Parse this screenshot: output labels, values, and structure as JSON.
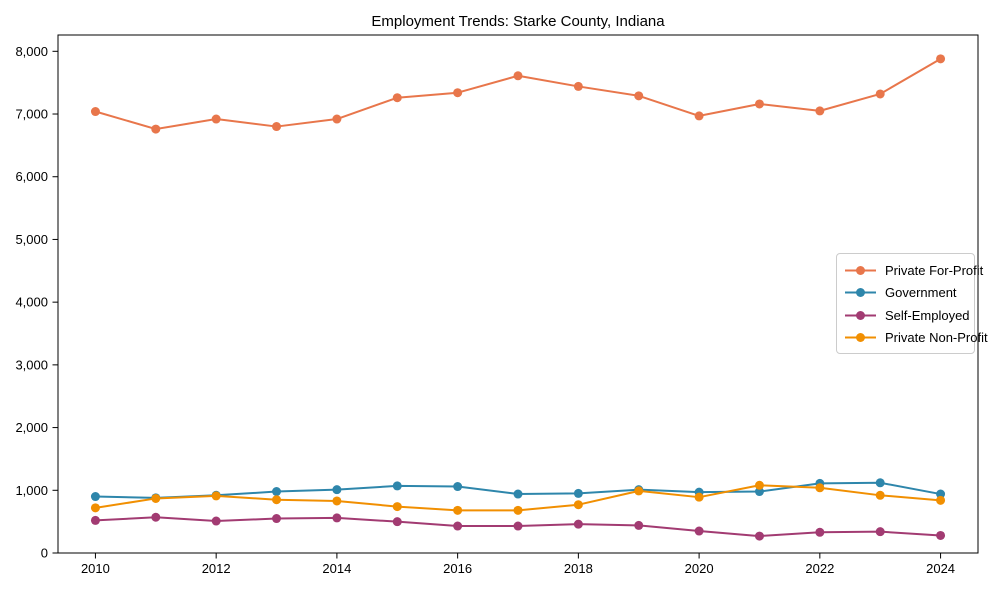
{
  "chart_data": {
    "type": "line",
    "title": "Employment Trends: Starke County, Indiana",
    "x": [
      2010,
      2011,
      2012,
      2013,
      2014,
      2015,
      2016,
      2017,
      2018,
      2019,
      2020,
      2021,
      2022,
      2023,
      2024
    ],
    "series": [
      {
        "name": "Private For-Profit",
        "color": "#E8764B",
        "values": [
          7040,
          6760,
          6920,
          6800,
          6920,
          7260,
          7340,
          7610,
          7440,
          7290,
          6970,
          7160,
          7050,
          7320,
          7880
        ]
      },
      {
        "name": "Government",
        "color": "#2E86AB",
        "values": [
          900,
          880,
          920,
          980,
          1010,
          1070,
          1060,
          940,
          950,
          1010,
          970,
          980,
          1110,
          1120,
          940
        ]
      },
      {
        "name": "Self-Employed",
        "color": "#A23B72",
        "values": [
          520,
          570,
          510,
          550,
          560,
          500,
          430,
          430,
          460,
          440,
          350,
          270,
          330,
          340,
          280
        ]
      },
      {
        "name": "Private Non-Profit",
        "color": "#F18F01",
        "values": [
          720,
          870,
          910,
          850,
          830,
          740,
          680,
          680,
          770,
          990,
          890,
          1080,
          1040,
          920,
          840
        ]
      }
    ],
    "xlim": [
      2009.38,
      2024.62
    ],
    "ylim": [
      0,
      8260
    ],
    "xticks": [
      2010,
      2012,
      2014,
      2016,
      2018,
      2020,
      2022,
      2024
    ],
    "xtick_labels": [
      "2010",
      "2012",
      "2014",
      "2016",
      "2018",
      "2020",
      "2022",
      "2024"
    ],
    "yticks": [
      0,
      1000,
      2000,
      3000,
      4000,
      5000,
      6000,
      7000,
      8000
    ],
    "ytick_labels": [
      "0",
      "1,000",
      "2,000",
      "3,000",
      "4,000",
      "5,000",
      "6,000",
      "7,000",
      "8,000"
    ],
    "grid": false,
    "legend_position": "center right",
    "axis_color": "#000000",
    "tick_label_color": "#000000"
  }
}
